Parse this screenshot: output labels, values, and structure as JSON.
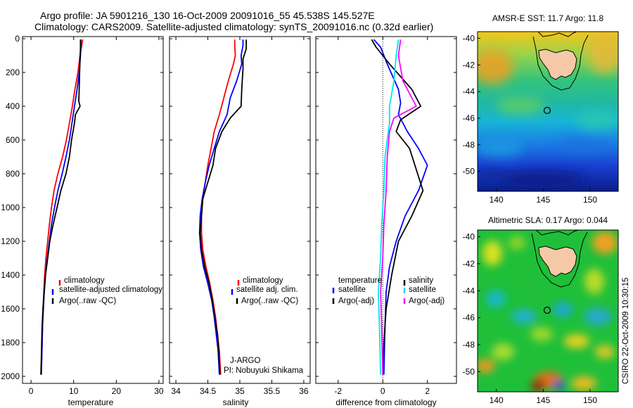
{
  "header": {
    "line1": "Argo profile: JA 5901216_130 16-Oct-2009 20091016_55 45.538S 145.527E",
    "line2": "Climatology: CARS2009. Satellite-adjusted climatology: synTS_20091016.nc (0.32d earlier)"
  },
  "side_note": "CSIRO 22-Oct-2009 10:30:15",
  "colors": {
    "climatology": "#ff0000",
    "satellite": "#0000ff",
    "argo": "#000000",
    "temp_diff_sat": "#0000ff",
    "temp_diff_argo": "#000000",
    "sal_diff_sat": "#00e5ee",
    "sal_diff_argo": "#ff00ff",
    "land": "#f5c9a8"
  },
  "chart_data": [
    {
      "id": "temperature",
      "type": "line",
      "xlabel": "temperature",
      "xlim": [
        -2,
        31
      ],
      "ylim": [
        2050,
        0
      ],
      "xticks": [
        0,
        10,
        20,
        30
      ],
      "yticks": [
        0,
        200,
        400,
        600,
        800,
        1000,
        1200,
        1400,
        1600,
        1800,
        2000
      ],
      "legend": {
        "position": "lower-right",
        "entries": [
          "climatology",
          "satellite-adjusted climatology",
          "Argo(..raw -QC)"
        ]
      },
      "series": [
        {
          "name": "climatology",
          "color": "#ff0000",
          "points": [
            [
              12.1,
              5
            ],
            [
              11.9,
              40
            ],
            [
              11.5,
              100
            ],
            [
              11.0,
              200
            ],
            [
              10.3,
              300
            ],
            [
              9.7,
              400
            ],
            [
              9.0,
              500
            ],
            [
              8.3,
              600
            ],
            [
              7.4,
              700
            ],
            [
              6.3,
              800
            ],
            [
              5.4,
              900
            ],
            [
              4.8,
              1000
            ],
            [
              4.3,
              1100
            ],
            [
              3.9,
              1200
            ],
            [
              3.5,
              1300
            ],
            [
              3.2,
              1400
            ],
            [
              3.0,
              1500
            ],
            [
              2.8,
              1600
            ],
            [
              2.7,
              1700
            ],
            [
              2.6,
              1800
            ],
            [
              2.5,
              1900
            ],
            [
              2.4,
              1990
            ]
          ]
        },
        {
          "name": "satellite-adjusted climatology",
          "color": "#0000ff",
          "points": [
            [
              11.7,
              5
            ],
            [
              11.7,
              40
            ],
            [
              11.6,
              100
            ],
            [
              11.3,
              200
            ],
            [
              10.8,
              300
            ],
            [
              10.2,
              400
            ],
            [
              9.6,
              500
            ],
            [
              9.0,
              600
            ],
            [
              8.2,
              700
            ],
            [
              7.3,
              800
            ],
            [
              6.3,
              900
            ],
            [
              5.5,
              1000
            ],
            [
              4.8,
              1100
            ],
            [
              4.3,
              1200
            ],
            [
              3.8,
              1300
            ],
            [
              3.4,
              1400
            ],
            [
              3.1,
              1500
            ],
            [
              2.9,
              1600
            ],
            [
              2.7,
              1700
            ],
            [
              2.6,
              1800
            ],
            [
              2.5,
              1900
            ],
            [
              2.4,
              1990
            ]
          ]
        },
        {
          "name": "Argo(..raw -QC)",
          "color": "#000000",
          "points": [
            [
              11.6,
              5
            ],
            [
              11.6,
              60
            ],
            [
              11.5,
              120
            ],
            [
              11.4,
              200
            ],
            [
              11.3,
              300
            ],
            [
              11.2,
              370
            ],
            [
              11.5,
              400
            ],
            [
              10.4,
              450
            ],
            [
              10.2,
              500
            ],
            [
              9.5,
              600
            ],
            [
              9.0,
              700
            ],
            [
              8.2,
              800
            ],
            [
              7.0,
              900
            ],
            [
              6.1,
              1000
            ],
            [
              5.2,
              1100
            ],
            [
              4.4,
              1200
            ],
            [
              3.9,
              1300
            ],
            [
              3.4,
              1400
            ],
            [
              3.1,
              1500
            ],
            [
              2.8,
              1600
            ],
            [
              2.6,
              1700
            ],
            [
              2.5,
              1800
            ],
            [
              2.4,
              1900
            ],
            [
              2.3,
              1990
            ]
          ]
        }
      ]
    },
    {
      "id": "salinity",
      "type": "line",
      "xlabel": "salinity",
      "xlim": [
        33.9,
        36.1
      ],
      "ylim": [
        2050,
        0
      ],
      "xticks": [
        34,
        34.5,
        35,
        35.5,
        36
      ],
      "yticks": [
        0,
        200,
        400,
        600,
        800,
        1000,
        1200,
        1400,
        1600,
        1800,
        2000
      ],
      "legend": {
        "position": "lower-right",
        "entries": [
          "climatology",
          "satellite adj. clim.",
          "Argo(..raw -QC)"
        ]
      },
      "annotations": [
        "J-ARGO",
        "PI: Nobuyuki Shikama"
      ],
      "series": [
        {
          "name": "climatology",
          "color": "#ff0000",
          "points": [
            [
              34.92,
              5
            ],
            [
              34.92,
              40
            ],
            [
              34.93,
              100
            ],
            [
              34.9,
              150
            ],
            [
              34.82,
              250
            ],
            [
              34.75,
              350
            ],
            [
              34.68,
              450
            ],
            [
              34.6,
              550
            ],
            [
              34.55,
              650
            ],
            [
              34.5,
              750
            ],
            [
              34.46,
              850
            ],
            [
              34.42,
              950
            ],
            [
              34.4,
              1050
            ],
            [
              34.4,
              1150
            ],
            [
              34.42,
              1250
            ],
            [
              34.47,
              1350
            ],
            [
              34.53,
              1450
            ],
            [
              34.58,
              1550
            ],
            [
              34.62,
              1650
            ],
            [
              34.65,
              1750
            ],
            [
              34.68,
              1850
            ],
            [
              34.7,
              1990
            ]
          ]
        },
        {
          "name": "satellite adj. clim.",
          "color": "#0000ff",
          "points": [
            [
              35.05,
              5
            ],
            [
              35.05,
              40
            ],
            [
              35.02,
              100
            ],
            [
              35.03,
              150
            ],
            [
              34.95,
              250
            ],
            [
              34.85,
              350
            ],
            [
              34.8,
              450
            ],
            [
              34.68,
              550
            ],
            [
              34.6,
              650
            ],
            [
              34.52,
              750
            ],
            [
              34.46,
              850
            ],
            [
              34.41,
              950
            ],
            [
              34.38,
              1050
            ],
            [
              34.37,
              1150
            ],
            [
              34.39,
              1250
            ],
            [
              34.43,
              1350
            ],
            [
              34.5,
              1450
            ],
            [
              34.56,
              1550
            ],
            [
              34.6,
              1650
            ],
            [
              34.63,
              1750
            ],
            [
              34.66,
              1850
            ],
            [
              34.68,
              1990
            ]
          ]
        },
        {
          "name": "Argo(..raw -QC)",
          "color": "#000000",
          "points": [
            [
              35.1,
              5
            ],
            [
              35.1,
              60
            ],
            [
              35.05,
              120
            ],
            [
              35.05,
              180
            ],
            [
              35.03,
              300
            ],
            [
              35.02,
              400
            ],
            [
              34.85,
              470
            ],
            [
              34.72,
              550
            ],
            [
              34.62,
              650
            ],
            [
              34.58,
              750
            ],
            [
              34.5,
              850
            ],
            [
              34.42,
              950
            ],
            [
              34.4,
              1050
            ],
            [
              34.38,
              1150
            ],
            [
              34.4,
              1250
            ],
            [
              34.45,
              1350
            ],
            [
              34.52,
              1450
            ],
            [
              34.57,
              1550
            ],
            [
              34.61,
              1650
            ],
            [
              34.65,
              1750
            ],
            [
              34.67,
              1850
            ],
            [
              34.69,
              1990
            ]
          ]
        }
      ]
    },
    {
      "id": "difference",
      "type": "line",
      "xlabel": "difference from climatology",
      "xlim": [
        -3,
        3.3
      ],
      "ylim": [
        2050,
        0
      ],
      "xticks": [
        -2,
        0,
        2
      ],
      "yticks": [
        0,
        200,
        400,
        600,
        800,
        1000,
        1200,
        1400,
        1600,
        1800,
        2000
      ],
      "reference_line": 0,
      "legend": {
        "position": "lower",
        "columns": [
          {
            "title": "temperature",
            "entries": [
              "satellite",
              "Argo(-adj)"
            ]
          },
          {
            "title": "salinity",
            "entries": [
              "satellite",
              "Argo(-adj)"
            ]
          }
        ]
      },
      "series": [
        {
          "name": "temperature satellite",
          "color": "#0000ff",
          "points": [
            [
              -0.4,
              5
            ],
            [
              -0.1,
              50
            ],
            [
              0.2,
              150
            ],
            [
              0.7,
              300
            ],
            [
              0.8,
              380
            ],
            [
              0.7,
              450
            ],
            [
              1.1,
              550
            ],
            [
              1.6,
              650
            ],
            [
              2.0,
              750
            ],
            [
              1.6,
              900
            ],
            [
              1.0,
              1050
            ],
            [
              0.6,
              1200
            ],
            [
              0.3,
              1350
            ],
            [
              0.15,
              1500
            ],
            [
              0.1,
              1700
            ],
            [
              0.05,
              1990
            ]
          ]
        },
        {
          "name": "temperature Argo(-adj)",
          "color": "#000000",
          "points": [
            [
              -0.5,
              5
            ],
            [
              -0.3,
              50
            ],
            [
              0.3,
              150
            ],
            [
              1.3,
              300
            ],
            [
              1.7,
              400
            ],
            [
              0.8,
              480
            ],
            [
              0.6,
              550
            ],
            [
              1.2,
              650
            ],
            [
              1.8,
              900
            ],
            [
              1.3,
              1050
            ],
            [
              0.7,
              1200
            ],
            [
              0.4,
              1400
            ],
            [
              0.15,
              1600
            ],
            [
              0.05,
              1800
            ],
            [
              0.0,
              1990
            ]
          ]
        },
        {
          "name": "salinity satellite",
          "color": "#00e5ee",
          "points": [
            [
              0.7,
              5
            ],
            [
              0.6,
              100
            ],
            [
              0.5,
              250
            ],
            [
              0.3,
              400
            ],
            [
              0.3,
              500
            ],
            [
              0.1,
              700
            ],
            [
              0.05,
              900
            ],
            [
              -0.05,
              1100
            ],
            [
              -0.1,
              1300
            ],
            [
              -0.2,
              1500
            ],
            [
              -0.15,
              1700
            ],
            [
              -0.1,
              1990
            ]
          ]
        },
        {
          "name": "salinity Argo(-adj)",
          "color": "#ff00ff",
          "points": [
            [
              0.8,
              5
            ],
            [
              0.7,
              100
            ],
            [
              0.9,
              250
            ],
            [
              1.5,
              400
            ],
            [
              0.5,
              470
            ],
            [
              0.3,
              550
            ],
            [
              0.2,
              700
            ],
            [
              0.15,
              900
            ],
            [
              0.05,
              1100
            ],
            [
              0.0,
              1300
            ],
            [
              -0.1,
              1500
            ],
            [
              -0.05,
              1700
            ],
            [
              0.0,
              1990
            ]
          ]
        }
      ]
    },
    {
      "id": "sst_map",
      "type": "heatmap",
      "title": "AMSR-E SST: 11.7 Argo: 11.8",
      "xlim": [
        138,
        153
      ],
      "ylim": [
        -51.5,
        -39.5
      ],
      "xticks": [
        140,
        145,
        150
      ],
      "yticks": [
        -40,
        -42,
        -44,
        -46,
        -48,
        -50
      ],
      "marker": {
        "lon": 145.527,
        "lat": -45.538
      }
    },
    {
      "id": "sla_map",
      "type": "heatmap",
      "title": "Altimetric SLA: 0.17 Argo: 0.044",
      "xlim": [
        138,
        153
      ],
      "ylim": [
        -51.5,
        -39.5
      ],
      "xticks": [
        140,
        145,
        150
      ],
      "yticks": [
        -40,
        -42,
        -44,
        -46,
        -48,
        -50
      ],
      "marker": {
        "lon": 145.527,
        "lat": -45.538
      }
    }
  ]
}
